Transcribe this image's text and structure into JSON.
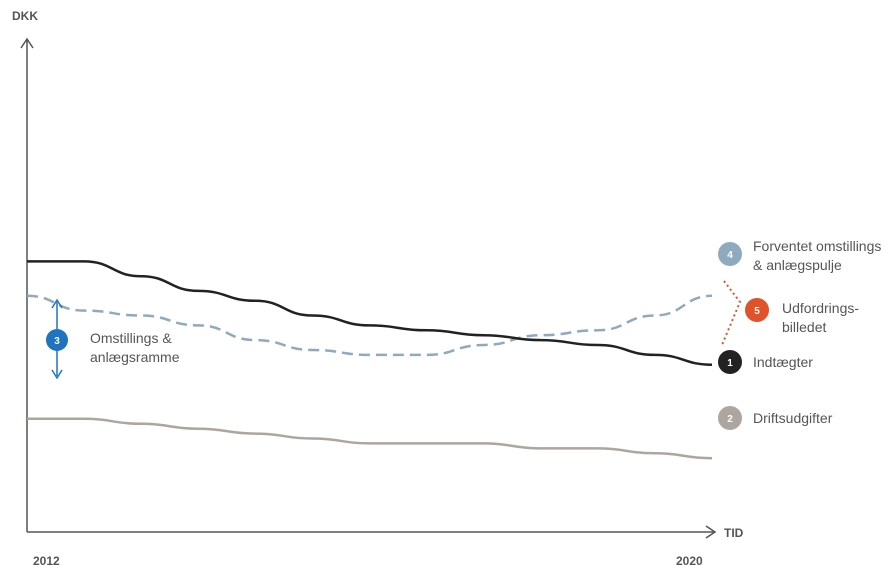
{
  "chart_data": {
    "type": "line",
    "ylabel": "DKK",
    "xlabel": "TID",
    "x_start_label": "2012",
    "x_end_label": "2020",
    "series": [
      {
        "name": "Forventet omstillings & anlægspulje",
        "badge": "4",
        "color": "#8eaabe",
        "dash": true,
        "values": [
          0.52,
          0.55,
          0.56,
          0.58,
          0.61,
          0.63,
          0.64,
          0.64,
          0.62,
          0.6,
          0.59,
          0.56,
          0.52
        ]
      },
      {
        "name": "Indtægter",
        "badge": "1",
        "color": "#222222",
        "dash": false,
        "values": [
          0.45,
          0.45,
          0.48,
          0.51,
          0.53,
          0.56,
          0.58,
          0.59,
          0.6,
          0.61,
          0.62,
          0.64,
          0.66
        ]
      },
      {
        "name": "Driftsudgifter",
        "badge": "2",
        "color": "#aea59e",
        "dash": false,
        "values": [
          0.77,
          0.77,
          0.78,
          0.79,
          0.8,
          0.81,
          0.82,
          0.82,
          0.82,
          0.83,
          0.83,
          0.84,
          0.85
        ]
      }
    ],
    "annotations": {
      "gap": {
        "badge": "3",
        "label_line1": "Omstillings &",
        "label_line2": "anlægsramme",
        "color": "#1f74c0"
      },
      "challenge": {
        "badge": "5",
        "label_line1": "Udfordrings-",
        "label_line2": "billedet",
        "color": "#e0522a"
      },
      "label_line1_4": "Forventet omstillings",
      "label_line2_4": "& anlægspulje",
      "label_1": "Indtægter",
      "label_2": "Driftsudgifter"
    }
  }
}
